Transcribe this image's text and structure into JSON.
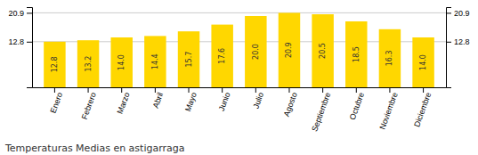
{
  "chart_data": {
    "type": "bar",
    "title": "Temperaturas Medias en astigarraga",
    "categories": [
      "Enero",
      "Febrero",
      "Marzo",
      "Abril",
      "Mayo",
      "Junio",
      "Julio",
      "Agosto",
      "Septiembre",
      "Octubre",
      "Noviembre",
      "Diciembre"
    ],
    "values": [
      12.8,
      13.2,
      14.0,
      14.4,
      15.7,
      17.6,
      20.0,
      20.9,
      20.5,
      18.5,
      16.3,
      14.0
    ],
    "value_labels": [
      "12.8",
      "13.2",
      "14.0",
      "14.4",
      "15.7",
      "17.6",
      "20.0",
      "20.9",
      "20.5",
      "18.5",
      "16.3",
      "14.0"
    ],
    "data_labels": true,
    "color": "#FFD700",
    "ylim": [
      0.0,
      22.5
    ],
    "yticks": [
      12.8,
      20.9
    ],
    "y2lim": [
      0.0,
      22.5
    ],
    "y2ticks": [
      12.8,
      20.9
    ],
    "grid": true
  }
}
